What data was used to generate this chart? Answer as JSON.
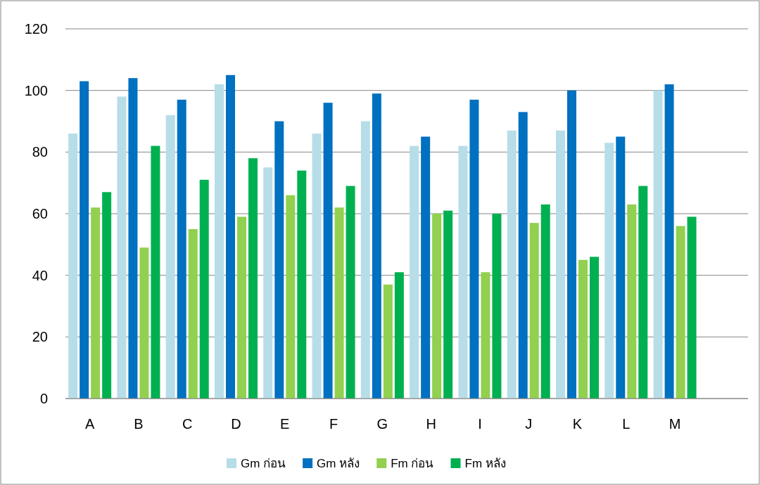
{
  "chart_data": {
    "type": "bar",
    "categories": [
      "A",
      "B",
      "C",
      "D",
      "E",
      "F",
      "G",
      "H",
      "I",
      "J",
      "K",
      "L",
      "M",
      null
    ],
    "series": [
      {
        "name": "Gm ก่อน",
        "color": "#b7dde8",
        "values": [
          86,
          98,
          92,
          102,
          75,
          86,
          90,
          82,
          82,
          87,
          87,
          83,
          100,
          null
        ]
      },
      {
        "name": "Gm หลัง",
        "color": "#0070c0",
        "values": [
          103,
          104,
          97,
          105,
          90,
          96,
          99,
          85,
          97,
          93,
          100,
          85,
          102,
          null
        ]
      },
      {
        "name": "Fm ก่อน",
        "color": "#92d050",
        "values": [
          62,
          49,
          55,
          59,
          66,
          62,
          37,
          60,
          41,
          57,
          45,
          63,
          56,
          null
        ]
      },
      {
        "name": "Fm หลัง",
        "color": "#00b050",
        "values": [
          67,
          82,
          71,
          78,
          74,
          69,
          41,
          61,
          60,
          63,
          46,
          69,
          59,
          null
        ]
      }
    ],
    "ylim": [
      0,
      120
    ],
    "yticks": [
      0,
      20,
      40,
      60,
      80,
      100,
      120
    ],
    "grid": "y",
    "legend": "bottom"
  }
}
